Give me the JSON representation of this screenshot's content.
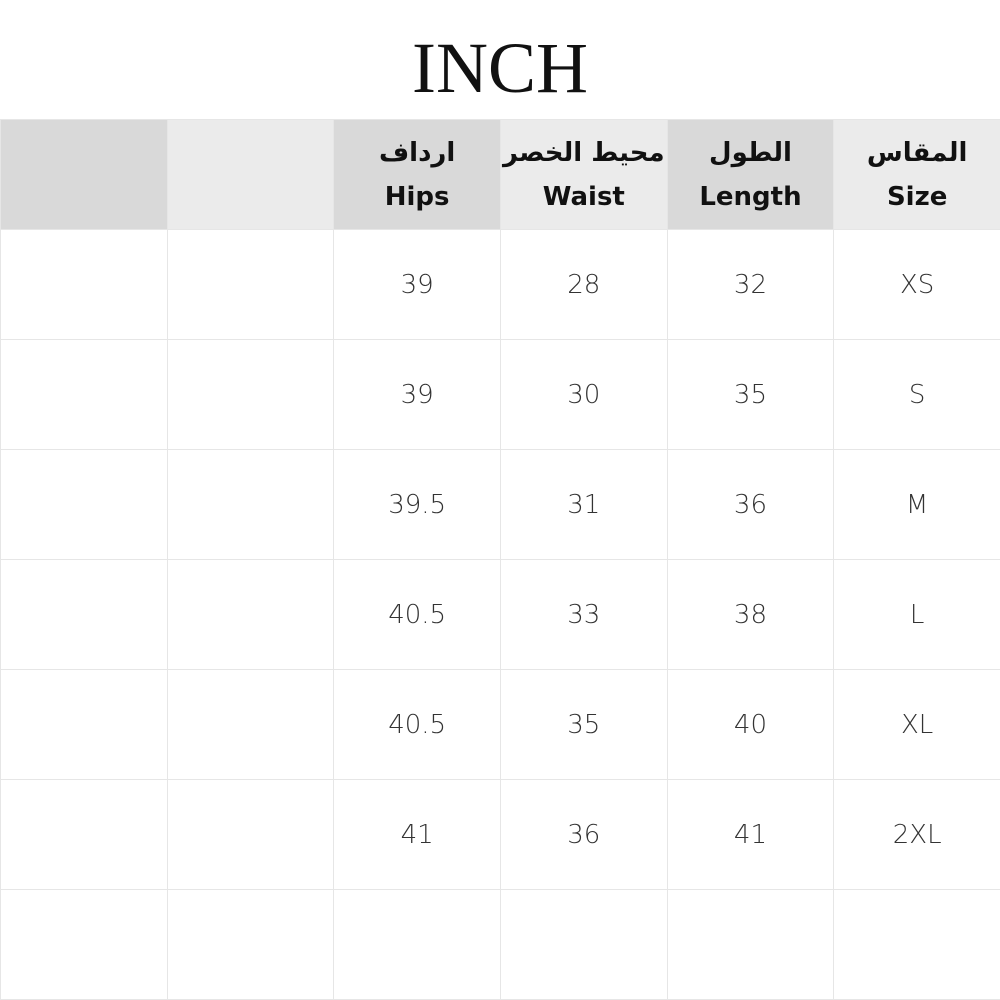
{
  "title": "INCH",
  "columns": [
    {
      "ar": "",
      "en": ""
    },
    {
      "ar": "",
      "en": ""
    },
    {
      "ar": "ارداف",
      "en": "Hips"
    },
    {
      "ar": "محيط الخصر",
      "en": "Waist"
    },
    {
      "ar": "الطول",
      "en": "Length"
    },
    {
      "ar": "المقاس",
      "en": "Size"
    }
  ],
  "rows": [
    [
      "",
      "",
      "39",
      "28",
      "32",
      "XS"
    ],
    [
      "",
      "",
      "39",
      "30",
      "35",
      "S"
    ],
    [
      "",
      "",
      "39.5",
      "31",
      "36",
      "M"
    ],
    [
      "",
      "",
      "40.5",
      "33",
      "38",
      "L"
    ],
    [
      "",
      "",
      "40.5",
      "35",
      "40",
      "XL"
    ],
    [
      "",
      "",
      "41",
      "36",
      "41",
      "2XL"
    ],
    [
      "",
      "",
      "",
      "",
      "",
      ""
    ]
  ],
  "colors": {
    "header_dark": "#d9d9d9",
    "header_light": "#ebebeb",
    "grid": "#e6e6e6"
  }
}
